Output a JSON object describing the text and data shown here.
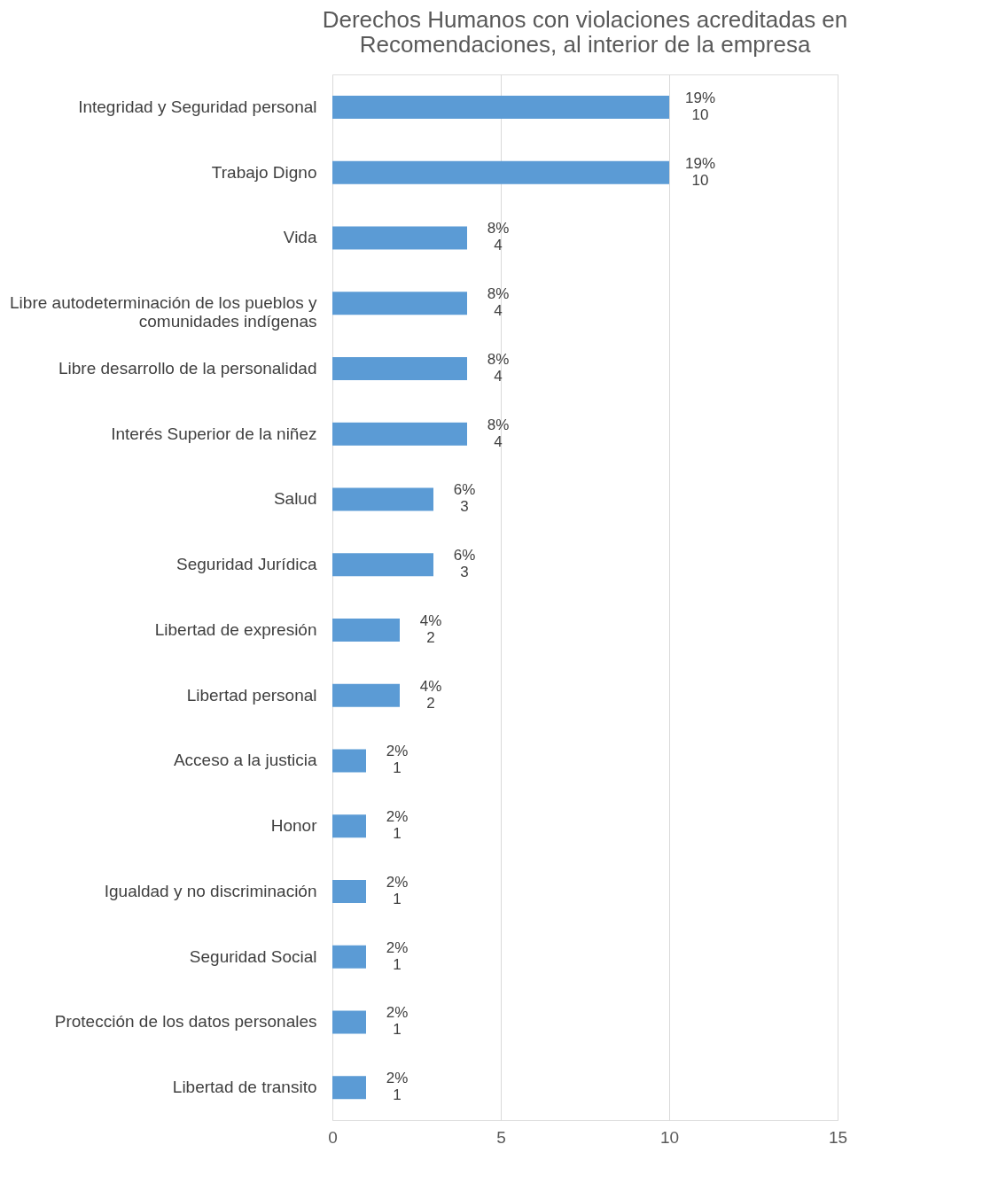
{
  "chart_data": {
    "type": "bar",
    "orientation": "horizontal",
    "title": "Derechos Humanos con violaciones acreditadas en Recomendaciones, al interior de la empresa",
    "categories": [
      "Integridad y Seguridad personal",
      "Trabajo Digno",
      "Vida",
      "Libre autodeterminación de los pueblos y comunidades indígenas",
      "Libre desarrollo de la personalidad",
      "Interés Superior de la niñez",
      "Salud",
      "Seguridad Jurídica",
      "Libertad de expresión",
      "Libertad personal",
      "Acceso a la justicia",
      "Honor",
      "Igualdad y no discriminación",
      "Seguridad Social",
      "Protección de los datos personales",
      "Libertad de transito"
    ],
    "values": [
      10,
      10,
      4,
      4,
      4,
      4,
      3,
      3,
      2,
      2,
      1,
      1,
      1,
      1,
      1,
      1
    ],
    "value_labels": [
      "19%\n10",
      "19%\n10",
      "8%\n4",
      "8%\n4",
      "8%\n4",
      "8%\n4",
      "6%\n3",
      "6%\n3",
      "4%\n2",
      "4%\n2",
      "2%\n1",
      "2%\n1",
      "2%\n1",
      "2%\n1",
      "2%\n1",
      "2%\n1"
    ],
    "color": "#5b9bd5",
    "xlim": [
      0,
      15
    ],
    "xticks": [
      0,
      5,
      10,
      15
    ],
    "grid": "x"
  }
}
